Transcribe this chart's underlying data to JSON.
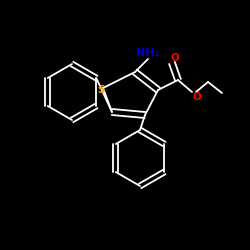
{
  "background_color": "#000000",
  "bond_color": "#ffffff",
  "S_color": "#ffa500",
  "N_color": "#0000cd",
  "O_color": "#ff0000",
  "NH2_label": "NH₂",
  "S_label": "S",
  "O_label": "O",
  "lw": 1.3,
  "lw_ring": 1.2
}
